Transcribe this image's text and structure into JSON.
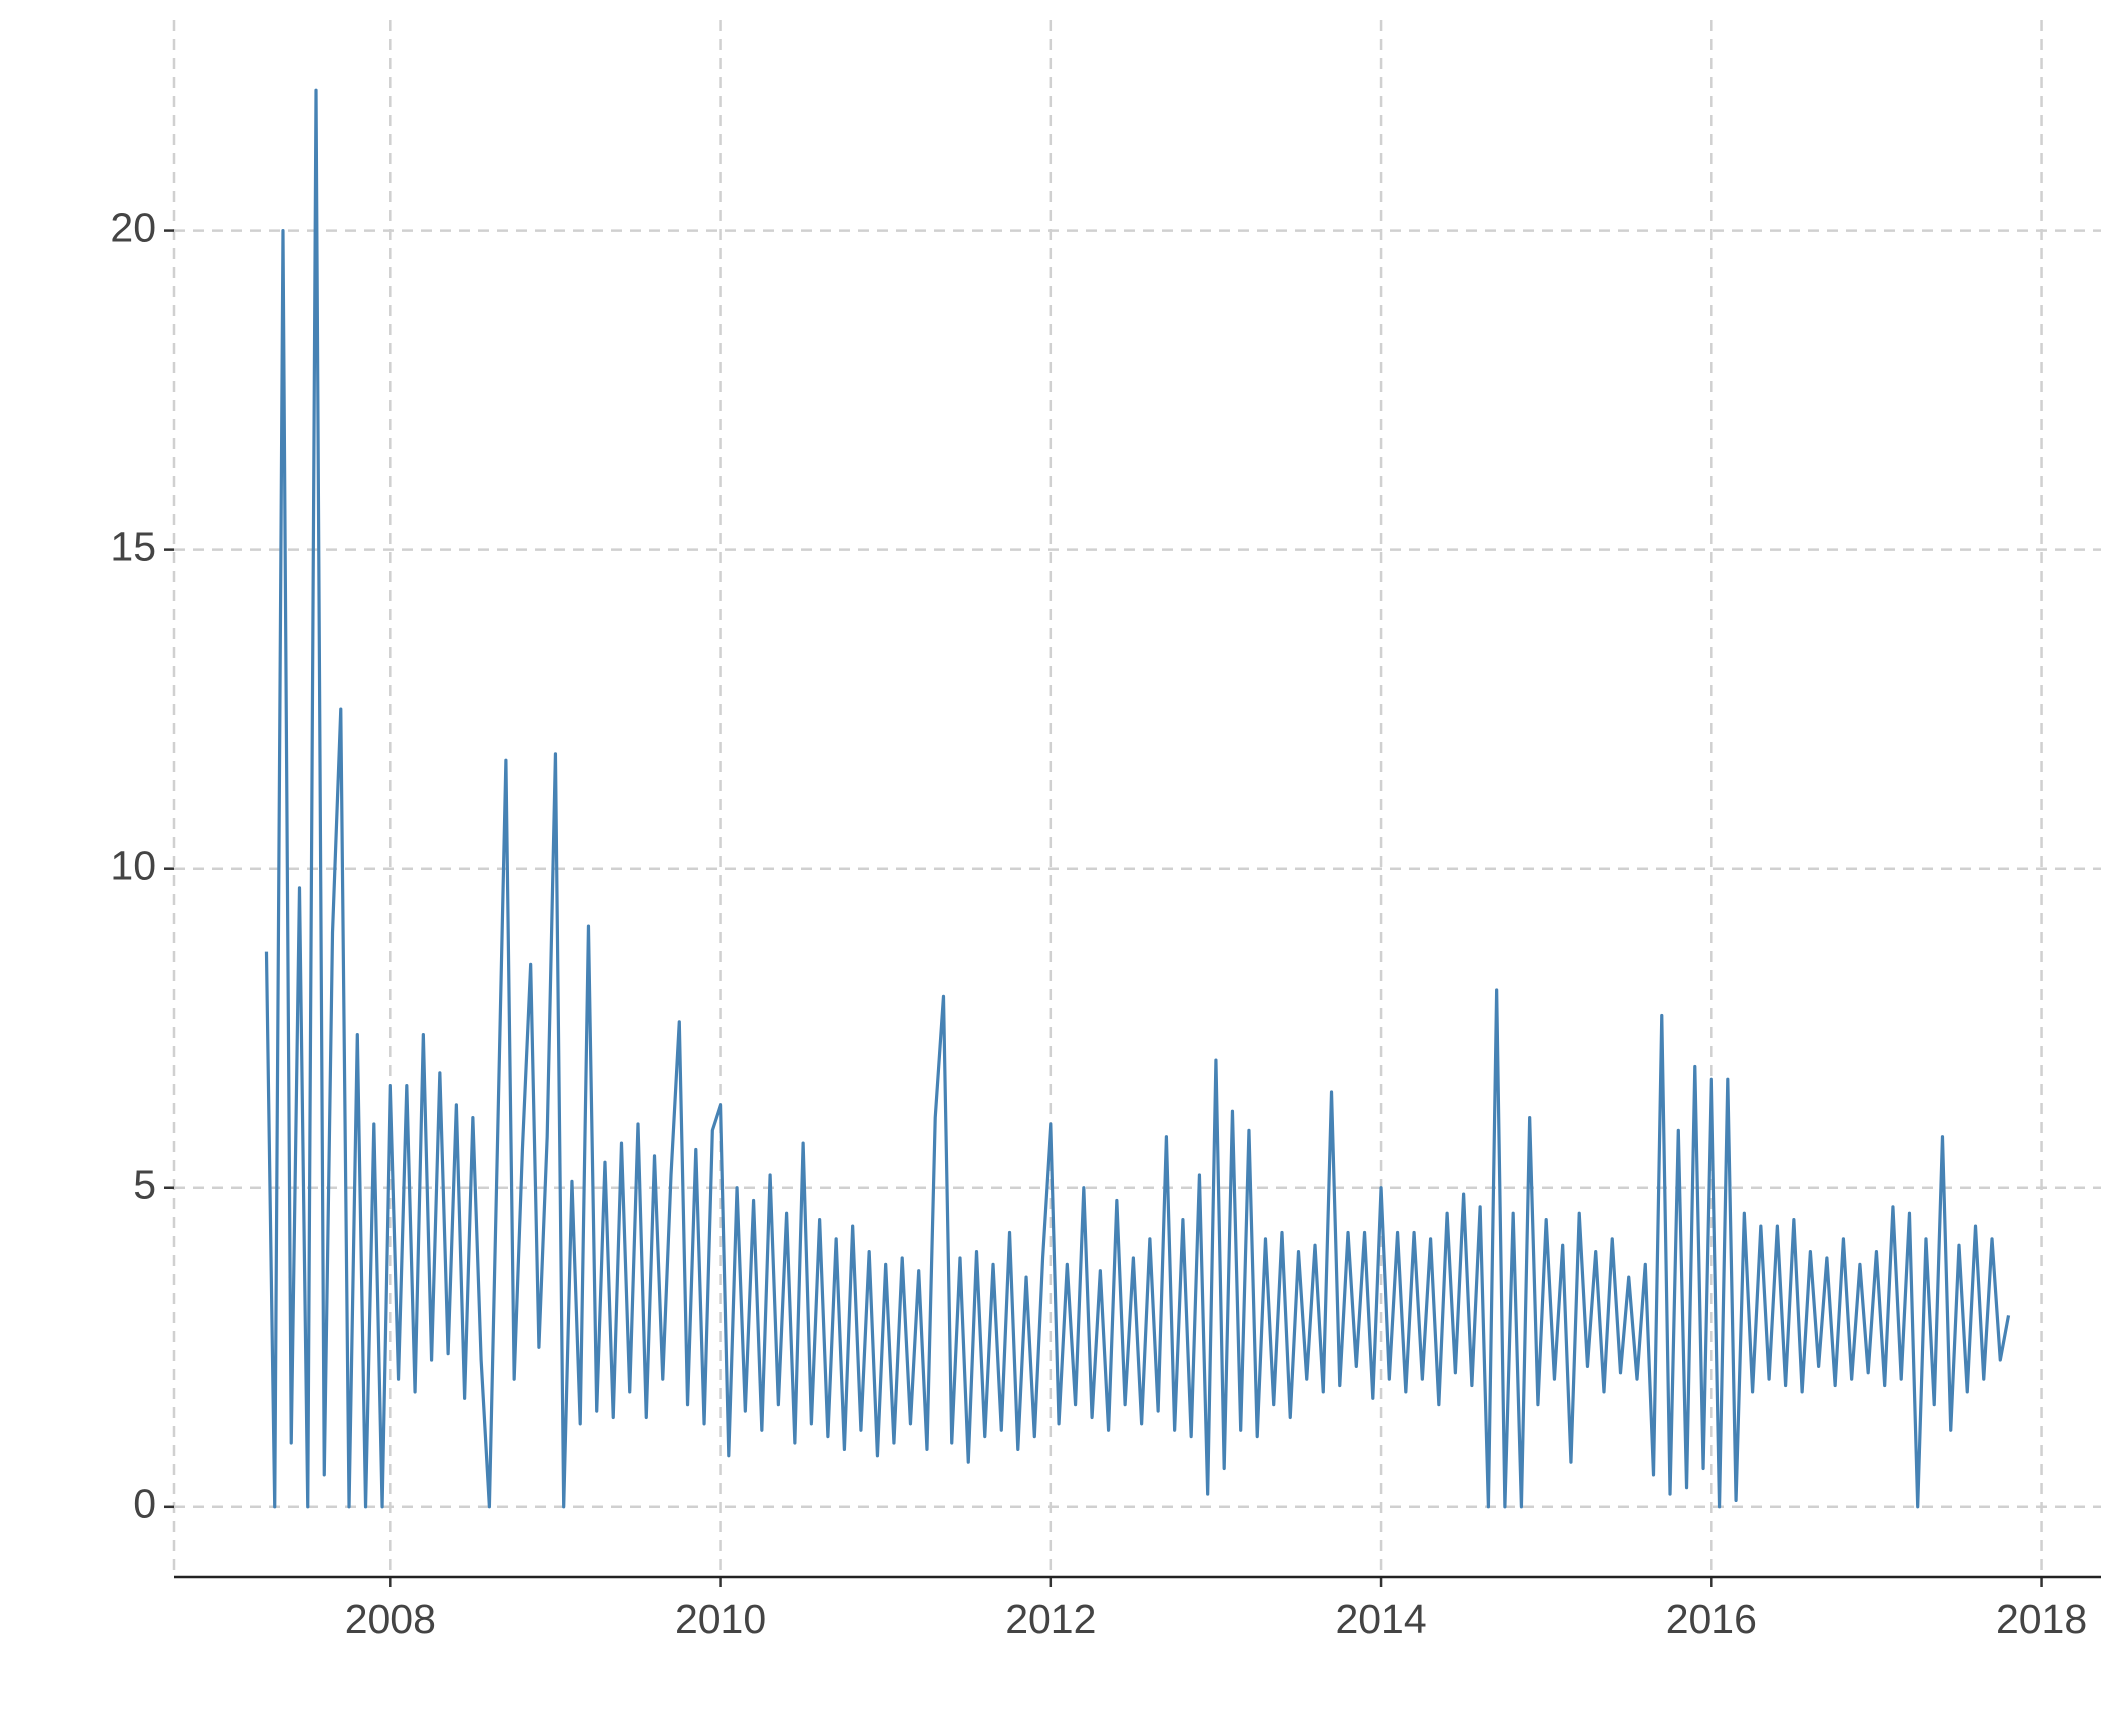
{
  "chart_data": {
    "type": "line",
    "x": [
      2007.25,
      2007.3,
      2007.35,
      2007.4,
      2007.45,
      2007.5,
      2007.55,
      2007.6,
      2007.65,
      2007.7,
      2007.75,
      2007.8,
      2007.85,
      2007.9,
      2007.95,
      2008.0,
      2008.05,
      2008.1,
      2008.15,
      2008.2,
      2008.25,
      2008.3,
      2008.35,
      2008.4,
      2008.45,
      2008.5,
      2008.55,
      2008.6,
      2008.65,
      2008.7,
      2008.75,
      2008.8,
      2008.85,
      2008.9,
      2008.95,
      2009.0,
      2009.05,
      2009.1,
      2009.15,
      2009.2,
      2009.25,
      2009.3,
      2009.35,
      2009.4,
      2009.45,
      2009.5,
      2009.55,
      2009.6,
      2009.65,
      2009.7,
      2009.75,
      2009.8,
      2009.85,
      2009.9,
      2009.95,
      2010.0,
      2010.05,
      2010.1,
      2010.15,
      2010.2,
      2010.25,
      2010.3,
      2010.35,
      2010.4,
      2010.45,
      2010.5,
      2010.55,
      2010.6,
      2010.65,
      2010.7,
      2010.75,
      2010.8,
      2010.85,
      2010.9,
      2010.95,
      2011.0,
      2011.05,
      2011.1,
      2011.15,
      2011.2,
      2011.25,
      2011.3,
      2011.35,
      2011.4,
      2011.45,
      2011.5,
      2011.55,
      2011.6,
      2011.65,
      2011.7,
      2011.75,
      2011.8,
      2011.85,
      2011.9,
      2011.95,
      2012.0,
      2012.05,
      2012.1,
      2012.15,
      2012.2,
      2012.25,
      2012.3,
      2012.35,
      2012.4,
      2012.45,
      2012.5,
      2012.55,
      2012.6,
      2012.65,
      2012.7,
      2012.75,
      2012.8,
      2012.85,
      2012.9,
      2012.95,
      2013.0,
      2013.05,
      2013.1,
      2013.15,
      2013.2,
      2013.25,
      2013.3,
      2013.35,
      2013.4,
      2013.45,
      2013.5,
      2013.55,
      2013.6,
      2013.65,
      2013.7,
      2013.75,
      2013.8,
      2013.85,
      2013.9,
      2013.95,
      2014.0,
      2014.05,
      2014.1,
      2014.15,
      2014.2,
      2014.25,
      2014.3,
      2014.35,
      2014.4,
      2014.45,
      2014.5,
      2014.55,
      2014.6,
      2014.65,
      2014.7,
      2014.75,
      2014.8,
      2014.85,
      2014.9,
      2014.95,
      2015.0,
      2015.05,
      2015.1,
      2015.15,
      2015.2,
      2015.25,
      2015.3,
      2015.35,
      2015.4,
      2015.45,
      2015.5,
      2015.55,
      2015.6,
      2015.65,
      2015.7,
      2015.75,
      2015.8,
      2015.85,
      2015.9,
      2015.95,
      2016.0,
      2016.05,
      2016.1,
      2016.15,
      2016.2,
      2016.25,
      2016.3,
      2016.35,
      2016.4,
      2016.45,
      2016.5,
      2016.55,
      2016.6,
      2016.65,
      2016.7,
      2016.75,
      2016.8,
      2016.85,
      2016.9,
      2016.95,
      2017.0,
      2017.05,
      2017.1,
      2017.15,
      2017.2,
      2017.25,
      2017.3,
      2017.35,
      2017.4,
      2017.45,
      2017.5,
      2017.55,
      2017.6,
      2017.65,
      2017.7,
      2017.75,
      2017.8
    ],
    "series": [
      {
        "color": "#4682b4",
        "values": [
          8.7,
          0,
          20.0,
          1.0,
          9.7,
          0,
          22.2,
          0.5,
          9.0,
          12.5,
          0,
          7.4,
          0,
          6.0,
          0,
          6.6,
          2.0,
          6.6,
          1.8,
          7.4,
          2.3,
          6.8,
          2.4,
          6.3,
          1.7,
          6.1,
          2.3,
          0,
          5.8,
          11.7,
          2.0,
          5.6,
          8.5,
          2.5,
          5.8,
          11.8,
          0,
          5.1,
          1.3,
          9.1,
          1.5,
          5.4,
          1.4,
          5.7,
          1.8,
          6.0,
          1.4,
          5.5,
          2.0,
          5.2,
          7.6,
          1.6,
          5.6,
          1.3,
          5.9,
          6.3,
          0.8,
          5.0,
          1.5,
          4.8,
          1.2,
          5.2,
          1.6,
          4.6,
          1.0,
          5.7,
          1.3,
          4.5,
          1.1,
          4.2,
          0.9,
          4.4,
          1.2,
          4.0,
          0.8,
          3.8,
          1.0,
          3.9,
          1.3,
          3.7,
          0.9,
          6.1,
          8.0,
          1.0,
          3.9,
          0.7,
          4.0,
          1.1,
          3.8,
          1.2,
          4.3,
          0.9,
          3.6,
          1.1,
          3.9,
          6.0,
          1.3,
          3.8,
          1.6,
          5.0,
          1.4,
          3.7,
          1.2,
          4.8,
          1.6,
          3.9,
          1.3,
          4.2,
          1.5,
          5.8,
          1.2,
          4.5,
          1.1,
          5.2,
          0.2,
          7.0,
          0.6,
          6.2,
          1.2,
          5.9,
          1.1,
          4.2,
          1.6,
          4.3,
          1.4,
          4.0,
          2.0,
          4.1,
          1.8,
          6.5,
          1.9,
          4.3,
          2.2,
          4.3,
          1.7,
          5.0,
          2.0,
          4.3,
          1.8,
          4.3,
          2.0,
          4.2,
          1.6,
          4.6,
          2.1,
          4.9,
          1.9,
          4.7,
          0,
          8.1,
          0,
          4.6,
          0,
          6.1,
          1.6,
          4.5,
          2.0,
          4.1,
          0.7,
          4.6,
          2.2,
          4.0,
          1.8,
          4.2,
          2.1,
          3.6,
          2.0,
          3.8,
          0.5,
          7.7,
          0.2,
          5.9,
          0.3,
          6.9,
          0.6,
          6.7,
          0,
          6.7,
          0.1,
          4.6,
          1.8,
          4.4,
          2.0,
          4.4,
          1.9,
          4.5,
          1.8,
          4.0,
          2.2,
          3.9,
          1.9,
          4.2,
          2.0,
          3.8,
          2.1,
          4.0,
          1.9,
          4.7,
          2.0,
          4.6,
          0,
          4.2,
          1.6,
          5.8,
          1.2,
          4.1,
          1.8,
          4.4,
          2.0,
          4.2,
          2.3,
          3.0
        ]
      }
    ],
    "xlim": [
      2006.69,
      2018.36
    ],
    "xticks": [
      2008,
      2010,
      2012,
      2014,
      2016,
      2018
    ],
    "ylim": [
      -1.1,
      23.3
    ],
    "yticks": [
      0,
      5,
      10,
      15,
      20
    ],
    "grid": true
  }
}
